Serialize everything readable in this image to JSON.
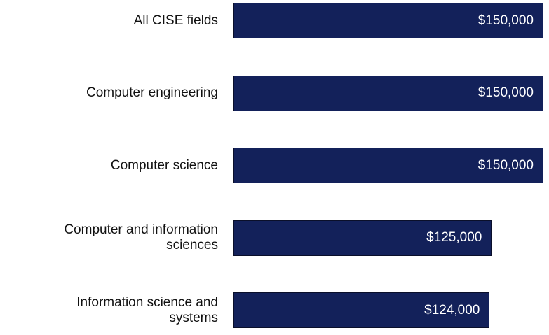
{
  "chart_data": {
    "type": "bar",
    "orientation": "horizontal",
    "categories": [
      "All CISE fields",
      "Computer engineering",
      "Computer science",
      "Computer and information sciences",
      "Information science and systems"
    ],
    "values": [
      150000,
      150000,
      150000,
      125000,
      124000
    ],
    "value_labels": [
      "$150,000",
      "$150,000",
      "$150,000",
      "$125,000",
      "$124,000"
    ],
    "color": "#13215a"
  }
}
